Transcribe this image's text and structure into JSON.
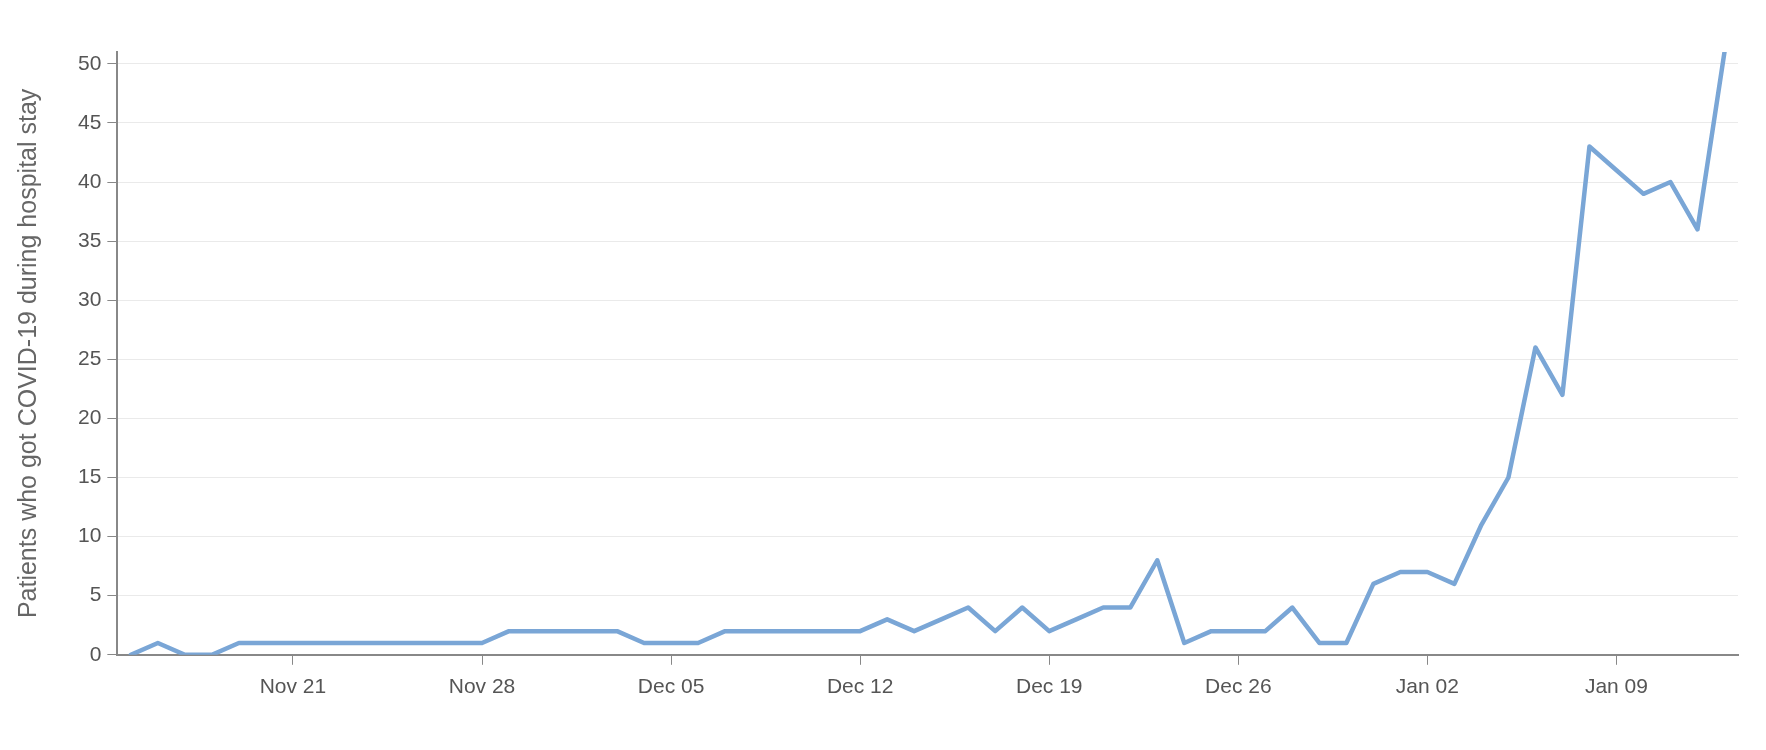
{
  "chart_data": {
    "type": "line",
    "ylabel": "Patients who got COVID-19 during hospital stay",
    "categories": [
      null,
      null,
      null,
      null,
      null,
      null,
      "Nov 21",
      null,
      null,
      null,
      null,
      null,
      null,
      "Nov 28",
      null,
      null,
      null,
      null,
      null,
      null,
      "Dec 05",
      null,
      null,
      null,
      null,
      null,
      null,
      "Dec 12",
      null,
      null,
      null,
      null,
      null,
      null,
      "Dec 19",
      null,
      null,
      null,
      null,
      null,
      null,
      "Dec 26",
      null,
      null,
      null,
      null,
      null,
      null,
      "Jan 02",
      null,
      null,
      null,
      null,
      null,
      null,
      "Jan 09",
      null,
      null,
      null,
      null
    ],
    "series": [
      {
        "color": "#7aa6d6",
        "values": [
          0,
          1,
          0,
          0,
          1,
          1,
          1,
          1,
          1,
          1,
          1,
          1,
          1,
          1,
          2,
          2,
          2,
          2,
          2,
          1,
          1,
          1,
          2,
          2,
          2,
          2,
          2,
          2,
          3,
          2,
          3,
          4,
          2,
          4,
          2,
          3,
          4,
          4,
          8,
          1,
          2,
          2,
          2,
          4,
          1,
          1,
          6,
          7,
          7,
          6,
          11,
          15,
          26,
          22,
          43,
          41,
          39,
          40,
          36,
          51
        ]
      }
    ],
    "ylim": [
      0,
      51
    ],
    "yticks": [
      0,
      5,
      10,
      15,
      20,
      25,
      30,
      35,
      40,
      45,
      50
    ],
    "grid": "y",
    "legend": false,
    "marker": "none",
    "line_style": "solid"
  }
}
